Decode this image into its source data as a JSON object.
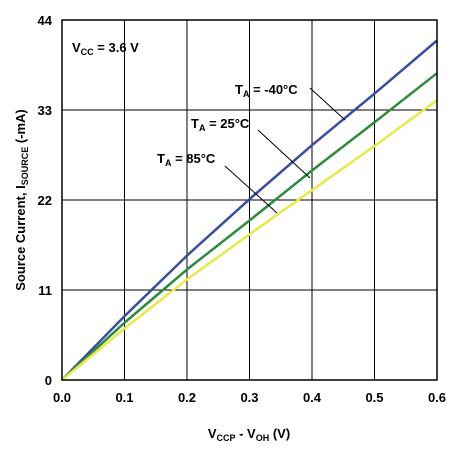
{
  "chart_data": {
    "type": "line",
    "xlim": [
      0,
      0.6
    ],
    "ylim": [
      0,
      44
    ],
    "x_ticks": [
      "0.0",
      "0.1",
      "0.2",
      "0.3",
      "0.4",
      "0.5",
      "0.6"
    ],
    "y_ticks": [
      "0",
      "11",
      "22",
      "33",
      "44"
    ],
    "grid": true,
    "xlabel": {
      "main": "V",
      "sub1": "CCP",
      "mid": " - V",
      "sub2": "OH",
      "tail": " (V)"
    },
    "ylabel": {
      "main": "Source Current, I",
      "sub": "SOURCE",
      "tail": " (-mA)"
    },
    "condition": {
      "main": "V",
      "sub": "CC",
      "tail": " = 3.6 V"
    },
    "series": [
      {
        "name": "T_A = -40°C",
        "label_main": "T",
        "label_sub": "A",
        "label_tail": " = -40°C",
        "color": "#3a4e9c",
        "x": [
          0,
          0.1,
          0.2,
          0.3,
          0.4,
          0.5,
          0.6
        ],
        "y": [
          0,
          7.8,
          15.2,
          22.1,
          28.7,
          35.0,
          41.5
        ]
      },
      {
        "name": "T_A = 25°C",
        "label_main": "T",
        "label_sub": "A",
        "label_tail": " = 25°C",
        "color": "#2e8b3e",
        "x": [
          0,
          0.1,
          0.2,
          0.3,
          0.4,
          0.5,
          0.6
        ],
        "y": [
          0,
          7.0,
          13.5,
          19.5,
          25.6,
          31.5,
          37.5
        ]
      },
      {
        "name": "T_A = 85°C",
        "label_main": "T",
        "label_sub": "A",
        "label_tail": " = 85°C",
        "color": "#e8e84a",
        "x": [
          0,
          0.1,
          0.2,
          0.3,
          0.4,
          0.5,
          0.6
        ],
        "y": [
          0,
          6.3,
          12.3,
          17.8,
          23.2,
          28.6,
          34.2
        ]
      }
    ]
  }
}
